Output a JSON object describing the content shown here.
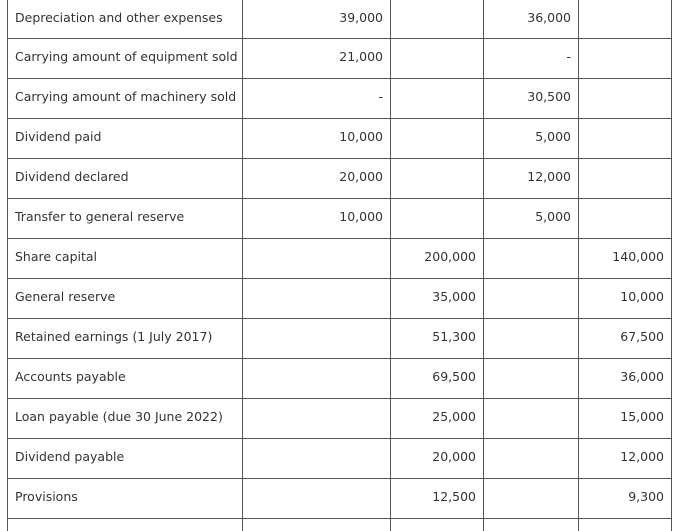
{
  "rows": [
    {
      "label": "Depreciation and other expenses",
      "c1": "39,000",
      "c2": "",
      "c3": "36,000",
      "c4": ""
    },
    {
      "label": "Carrying amount of equipment sold",
      "c1": "21,000",
      "c2": "",
      "c3": "-",
      "c4": ""
    },
    {
      "label": "Carrying amount of machinery sold",
      "c1": "-",
      "c2": "",
      "c3": "30,500",
      "c4": ""
    },
    {
      "label": "Dividend paid",
      "c1": "10,000",
      "c2": "",
      "c3": "5,000",
      "c4": ""
    },
    {
      "label": "Dividend declared",
      "c1": "20,000",
      "c2": "",
      "c3": "12,000",
      "c4": ""
    },
    {
      "label": "Transfer to general reserve",
      "c1": "10,000",
      "c2": "",
      "c3": "5,000",
      "c4": ""
    },
    {
      "label": "Share capital",
      "c1": "",
      "c2": "200,000",
      "c3": "",
      "c4": "140,000"
    },
    {
      "label": "General reserve",
      "c1": "",
      "c2": "35,000",
      "c3": "",
      "c4": "10,000"
    },
    {
      "label": "Retained earnings (1 July 2017)",
      "c1": "",
      "c2": "51,300",
      "c3": "",
      "c4": "67,500"
    },
    {
      "label": "Accounts payable",
      "c1": "",
      "c2": "69,500",
      "c3": "",
      "c4": "36,000"
    },
    {
      "label": "Loan payable (due 30 June 2022)",
      "c1": "",
      "c2": "25,000",
      "c3": "",
      "c4": "15,000"
    },
    {
      "label": "Dividend payable",
      "c1": "",
      "c2": "20,000",
      "c3": "",
      "c4": "12,000"
    },
    {
      "label": "Provisions",
      "c1": "",
      "c2": "12,500",
      "c3": "",
      "c4": "9,300"
    }
  ]
}
